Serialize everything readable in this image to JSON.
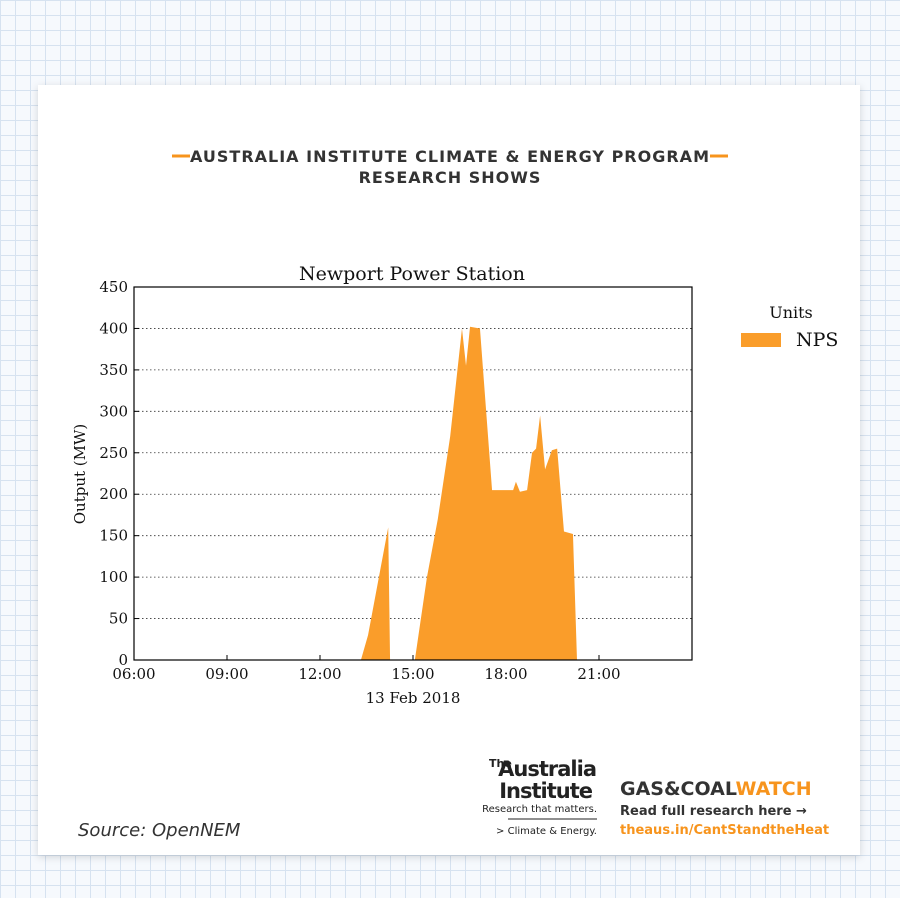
{
  "header": {
    "line1": "AUSTRALIA INSTITUTE CLIMATE & ENERGY PROGRAM",
    "line2": "RESEARCH SHOWS"
  },
  "chart_data": {
    "type": "area",
    "title": "Newport Power Station",
    "xlabel": "13 Feb 2018",
    "ylabel": "Output (MW)",
    "x": [
      13.32,
      13.55,
      14.2,
      14.26,
      15.06,
      15.45,
      15.8,
      16.2,
      16.58,
      16.71,
      16.84,
      17.16,
      17.55,
      18.23,
      18.32,
      18.45,
      18.68,
      18.84,
      18.97,
      19.1,
      19.26,
      19.48,
      19.65,
      19.87,
      20.16,
      20.29
    ],
    "series": [
      {
        "name": "NPS",
        "color": "#fa9d2a",
        "values": [
          0,
          30,
          160,
          0,
          0,
          100,
          170,
          270,
          400,
          355,
          402,
          400,
          205,
          205,
          215,
          203,
          205,
          250,
          255,
          295,
          230,
          253,
          255,
          155,
          152,
          0
        ]
      }
    ],
    "xlim": [
      6,
      24
    ],
    "xticks": [
      {
        "value": 6,
        "label": "06:00"
      },
      {
        "value": 9,
        "label": "09:00"
      },
      {
        "value": 12,
        "label": "12:00"
      },
      {
        "value": 15,
        "label": "15:00"
      },
      {
        "value": 18,
        "label": "18:00"
      },
      {
        "value": 21,
        "label": "21:00"
      }
    ],
    "ylim": [
      0,
      450
    ],
    "yticks": [
      0,
      50,
      100,
      150,
      200,
      250,
      300,
      350,
      400,
      450
    ],
    "grid": true,
    "legend_title": "Units",
    "legend": "outside right"
  },
  "footer": {
    "source": "Source: OpenNEM",
    "logo_the": "The",
    "logo_name1": "Australia",
    "logo_name2": "Institute",
    "logo_tag": "Research that matters.",
    "logo_program": "> Climate & Energy.",
    "gas_coal": "GAS&COAL",
    "watch": "WATCH",
    "read": "Read full research here →",
    "url": "theaus.in/CantStandtheHeat"
  }
}
